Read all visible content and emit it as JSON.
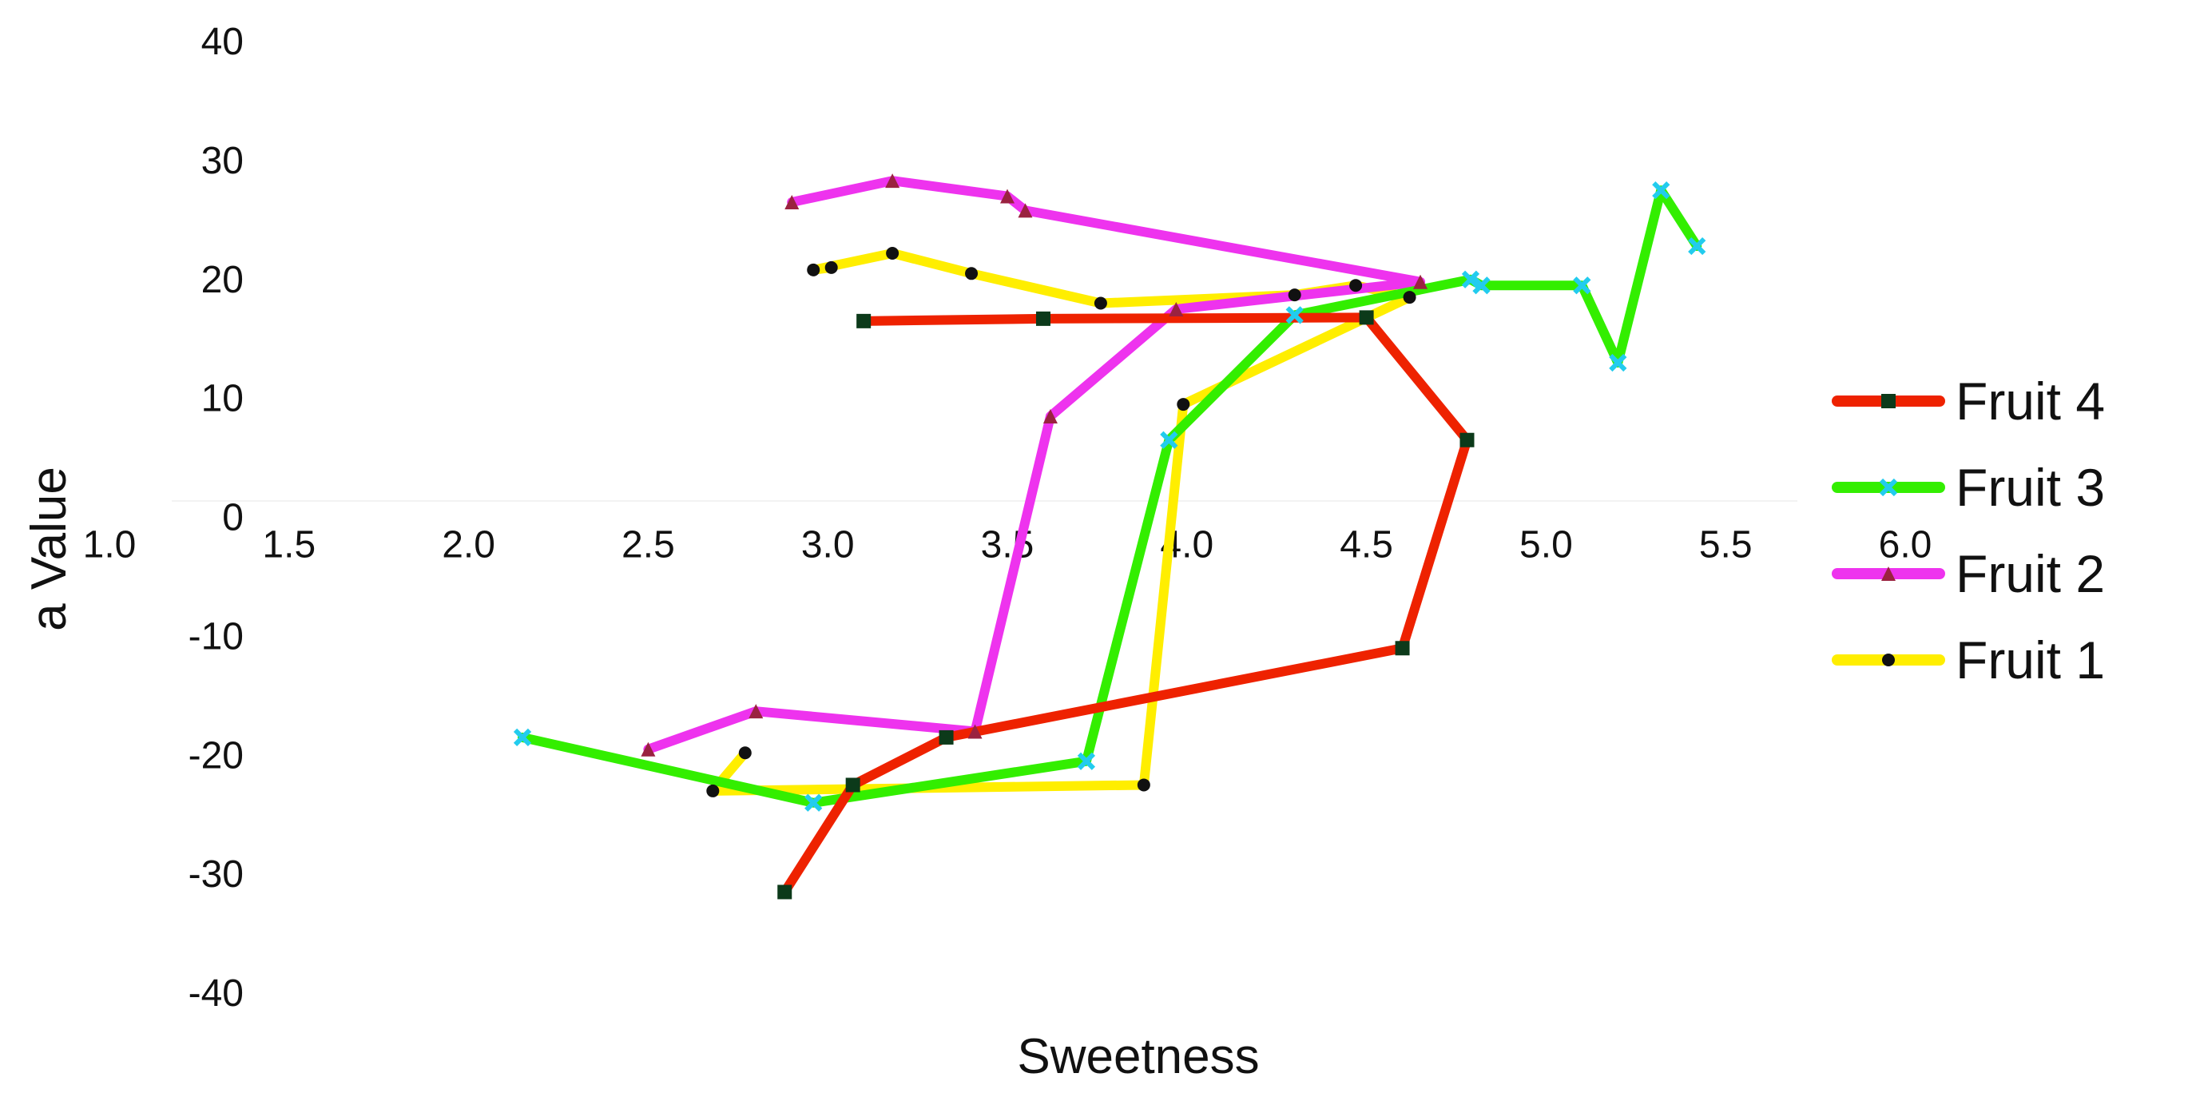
{
  "chart_data": {
    "type": "line",
    "title": "",
    "xlabel": "Sweetness",
    "ylabel": "a Value",
    "xlim": [
      1.0,
      6.0
    ],
    "ylim": [
      -40,
      40
    ],
    "x_ticks": [
      "1.0",
      "1.5",
      "2.0",
      "2.5",
      "3.0",
      "3.5",
      "4.0",
      "4.5",
      "5.0",
      "5.5",
      "6.0"
    ],
    "y_ticks": [
      "40",
      "30",
      "20",
      "10",
      "0",
      "-10",
      "-20",
      "-30",
      "-40"
    ],
    "grid": false,
    "legend_position": "right",
    "series": [
      {
        "name": "Fruit 4",
        "color": "#ee2200",
        "marker": "square",
        "marker_color": "#0c3a1a",
        "points": [
          [
            3.1,
            16.5
          ],
          [
            3.6,
            16.7
          ],
          [
            4.5,
            16.8
          ],
          [
            4.78,
            6.5
          ],
          [
            4.6,
            -11.0
          ],
          [
            3.33,
            -18.5
          ],
          [
            3.07,
            -22.5
          ],
          [
            2.88,
            -31.5
          ]
        ]
      },
      {
        "name": "Fruit 3",
        "color": "#33ee00",
        "marker": "x",
        "marker_color": "#22ccee",
        "points": [
          [
            2.15,
            -18.5
          ],
          [
            2.96,
            -24.0
          ],
          [
            3.72,
            -20.5
          ],
          [
            3.95,
            6.5
          ],
          [
            4.3,
            17.0
          ],
          [
            4.79,
            20.0
          ],
          [
            4.82,
            19.5
          ],
          [
            5.1,
            19.5
          ],
          [
            5.2,
            13.0
          ],
          [
            5.32,
            27.5
          ],
          [
            5.42,
            22.8
          ]
        ]
      },
      {
        "name": "Fruit 2",
        "color": "#ee33ee",
        "marker": "triangle",
        "marker_color": "#9a2240",
        "points": [
          [
            2.9,
            26.5
          ],
          [
            3.18,
            28.3
          ],
          [
            3.5,
            27.0
          ],
          [
            3.55,
            25.8
          ],
          [
            4.65,
            19.8
          ],
          [
            3.97,
            17.5
          ],
          [
            3.62,
            8.5
          ],
          [
            3.41,
            -18.0
          ],
          [
            2.8,
            -16.3
          ],
          [
            2.5,
            -19.5
          ]
        ]
      },
      {
        "name": "Fruit 1",
        "color": "#ffee00",
        "marker": "circle",
        "marker_color": "#111111",
        "points": [
          [
            2.77,
            -19.8
          ],
          [
            2.68,
            -23.0
          ],
          [
            3.88,
            -22.5
          ],
          [
            3.99,
            9.5
          ],
          [
            4.62,
            18.5
          ],
          [
            4.47,
            19.5
          ],
          [
            4.3,
            18.7
          ],
          [
            3.76,
            18.0
          ],
          [
            3.4,
            20.5
          ],
          [
            3.18,
            22.2
          ],
          [
            2.96,
            20.8
          ],
          [
            3.01,
            21.0
          ]
        ]
      }
    ]
  }
}
